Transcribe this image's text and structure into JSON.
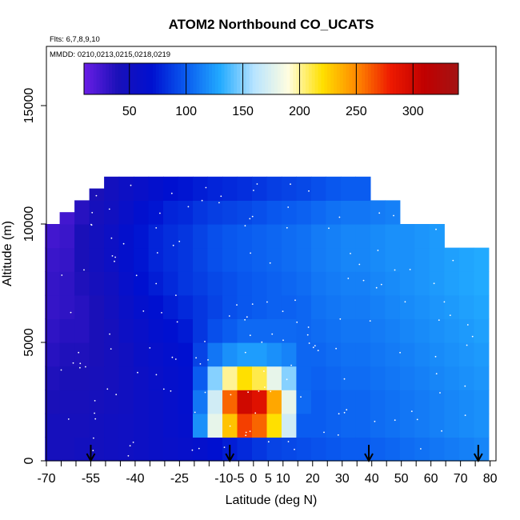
{
  "chart_data": {
    "type": "heatmap",
    "title": "ATOM2 Northbound CO_UCATS",
    "subtitle_flights": "Flts: 6,7,8,9,10",
    "subtitle_dates": "MMDD: 0210,0213,0215,0218,0219",
    "xlabel": "Latitude (deg N)",
    "ylabel": "Altitude (m)",
    "xlim": [
      -70,
      82
    ],
    "ylim": [
      0,
      17500
    ],
    "x_ticks": [
      -70,
      -65,
      -60,
      -55,
      -50,
      -45,
      -40,
      -35,
      -30,
      -25,
      -20,
      -15,
      -10,
      -5,
      0,
      5,
      10,
      15,
      20,
      25,
      30,
      35,
      40,
      45,
      50,
      55,
      60,
      65,
      70,
      75,
      80
    ],
    "x_tick_labels": [
      "-70",
      "",
      "",
      "-55",
      "",
      "",
      "-40",
      "",
      "",
      "-25",
      "",
      "",
      "-10",
      "-5",
      "0",
      "5",
      "10",
      "",
      "20",
      "",
      "30",
      "",
      "40",
      "",
      "50",
      "",
      "60",
      "",
      "70",
      "",
      "80"
    ],
    "y_ticks": [
      0,
      5000,
      10000,
      15000
    ],
    "y_tick_labels": [
      "0",
      "5000",
      "10000",
      "15000"
    ],
    "colorbar": {
      "range": [
        10,
        340
      ],
      "ticks": [
        50,
        100,
        150,
        200,
        250,
        300
      ],
      "tick_labels": [
        "50",
        "100",
        "150",
        "200",
        "250",
        "300"
      ],
      "colors": [
        "#6a1ee6",
        "#1a10b8",
        "#0010d0",
        "#0a5cf0",
        "#22aaff",
        "#b8e4ff",
        "#fffde0",
        "#ffe000",
        "#ff8a00",
        "#ee1a00",
        "#c00000",
        "#a31414"
      ]
    },
    "profile_arrows_lat": [
      -55,
      -8,
      39,
      76
    ],
    "lat_bins": [
      -68,
      -63,
      -58,
      -53,
      -48,
      -43,
      -38,
      -33,
      -28,
      -23,
      -18,
      -13,
      -8,
      -3,
      2,
      7,
      12,
      17,
      22,
      27,
      32,
      37,
      42,
      47,
      52,
      57,
      62,
      67,
      72,
      77
    ],
    "alt_bins": [
      0,
      1000,
      2000,
      3000,
      4000,
      5000,
      6000,
      7000,
      8000,
      9000,
      10000,
      11000,
      12000
    ],
    "top_alt": [
      10000,
      10500,
      11000,
      11500,
      12000,
      12000,
      12000,
      12000,
      12000,
      12000,
      12000,
      12000,
      12000,
      12000,
      12000,
      12000,
      12000,
      12000,
      12000,
      12000,
      12000,
      12000,
      11500,
      11500,
      11000,
      11000,
      10500,
      10000,
      9500,
      9500
    ],
    "values": [
      [
        45,
        45,
        40,
        38,
        35,
        32,
        30,
        30,
        28,
        25,
        20,
        15,
        null
      ],
      [
        45,
        45,
        42,
        40,
        38,
        35,
        32,
        32,
        30,
        28,
        25,
        20,
        null
      ],
      [
        48,
        45,
        42,
        40,
        38,
        35,
        35,
        38,
        40,
        40,
        35,
        30,
        null
      ],
      [
        48,
        48,
        45,
        42,
        40,
        40,
        40,
        45,
        48,
        48,
        45,
        40,
        null
      ],
      [
        50,
        50,
        48,
        45,
        45,
        45,
        48,
        50,
        55,
        55,
        50,
        48,
        null
      ],
      [
        52,
        52,
        50,
        50,
        50,
        55,
        58,
        62,
        65,
        65,
        60,
        55,
        null
      ],
      [
        55,
        55,
        55,
        55,
        58,
        60,
        65,
        70,
        72,
        72,
        68,
        60,
        null
      ],
      [
        58,
        58,
        58,
        60,
        62,
        66,
        70,
        75,
        78,
        78,
        72,
        65,
        null
      ],
      [
        60,
        62,
        62,
        64,
        66,
        70,
        75,
        80,
        82,
        82,
        78,
        70,
        null
      ],
      [
        62,
        65,
        66,
        68,
        70,
        74,
        80,
        85,
        85,
        85,
        80,
        72,
        null
      ],
      [
        65,
        120,
        110,
        100,
        90,
        85,
        85,
        88,
        90,
        90,
        85,
        75,
        null
      ],
      [
        70,
        180,
        170,
        150,
        110,
        95,
        90,
        92,
        95,
        95,
        88,
        78,
        null
      ],
      [
        75,
        230,
        260,
        200,
        120,
        100,
        95,
        95,
        98,
        98,
        90,
        80,
        null
      ],
      [
        80,
        270,
        300,
        220,
        125,
        105,
        98,
        98,
        100,
        100,
        92,
        82,
        null
      ],
      [
        85,
        260,
        290,
        210,
        125,
        105,
        100,
        100,
        102,
        102,
        95,
        85,
        null
      ],
      [
        90,
        220,
        240,
        180,
        120,
        105,
        102,
        102,
        104,
        104,
        98,
        88,
        null
      ],
      [
        92,
        170,
        180,
        150,
        115,
        105,
        102,
        104,
        106,
        106,
        100,
        90,
        null
      ],
      [
        94,
        100,
        105,
        104,
        104,
        104,
        104,
        106,
        108,
        108,
        102,
        92,
        null
      ],
      [
        96,
        100,
        100,
        102,
        104,
        106,
        108,
        110,
        112,
        112,
        105,
        95,
        null
      ],
      [
        98,
        102,
        102,
        104,
        106,
        108,
        110,
        112,
        114,
        114,
        108,
        98,
        null
      ],
      [
        100,
        104,
        104,
        106,
        108,
        110,
        112,
        114,
        116,
        116,
        110,
        100,
        null
      ],
      [
        100,
        104,
        104,
        106,
        108,
        110,
        112,
        114,
        116,
        116,
        110,
        100,
        null
      ],
      [
        102,
        106,
        106,
        108,
        110,
        112,
        114,
        116,
        118,
        118,
        112,
        null,
        null
      ],
      [
        104,
        108,
        108,
        110,
        112,
        114,
        116,
        118,
        120,
        120,
        114,
        null,
        null
      ],
      [
        106,
        110,
        110,
        112,
        114,
        116,
        118,
        120,
        120,
        120,
        null,
        null,
        null
      ],
      [
        108,
        112,
        112,
        114,
        116,
        118,
        120,
        122,
        122,
        122,
        null,
        null,
        null
      ],
      [
        110,
        114,
        114,
        116,
        118,
        120,
        122,
        124,
        124,
        124,
        null,
        null,
        null
      ],
      [
        112,
        116,
        116,
        118,
        120,
        122,
        124,
        126,
        126,
        null,
        null,
        null,
        null
      ],
      [
        114,
        118,
        118,
        120,
        122,
        124,
        126,
        128,
        128,
        null,
        null,
        null,
        null
      ],
      [
        116,
        120,
        120,
        122,
        124,
        126,
        128,
        130,
        130,
        null,
        null,
        null,
        null
      ]
    ]
  }
}
